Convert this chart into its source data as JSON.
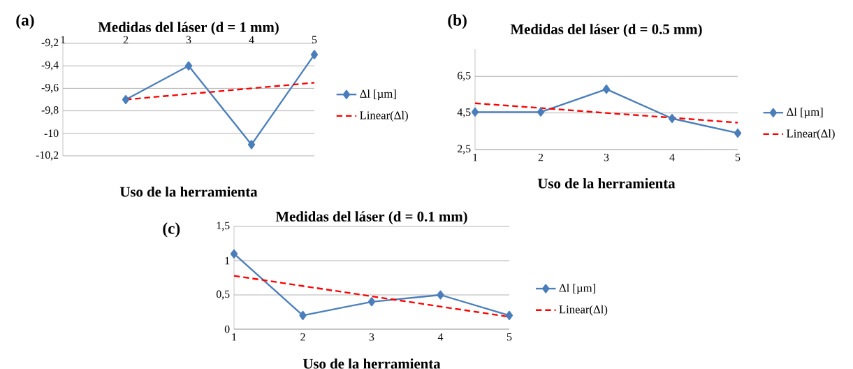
{
  "chart_data": [
    {
      "type": "line",
      "title": "Medidas del láser (d = 1 mm)",
      "xlabel": "Uso de la herramienta",
      "annotations": [
        "(a)"
      ],
      "categories": [
        "1",
        "2",
        "3",
        "4",
        "5"
      ],
      "series": [
        {
          "name": "Δl [µm]",
          "color": "#4a7ebb",
          "marker": "diamond",
          "line_style": "solid",
          "values": [
            null,
            -9.7,
            -9.4,
            -10.1,
            -9.3
          ]
        },
        {
          "name": "Linear(Δl)",
          "type": "line",
          "color": "#ff0000",
          "marker": "none",
          "line_style": "dashed",
          "values": [
            null,
            -9.7,
            -9.65,
            -9.6,
            -9.55
          ]
        }
      ],
      "ylim": [
        -10.2,
        -9.2
      ],
      "yticks": [
        {
          "value": -10.2,
          "label": "-10,2"
        },
        {
          "value": -10,
          "label": "-10"
        },
        {
          "value": -9.8,
          "label": "-9,8"
        },
        {
          "value": -9.6,
          "label": "-9,6"
        },
        {
          "value": -9.4,
          "label": "-9,4"
        },
        {
          "value": -9.2,
          "label": "-9,2"
        }
      ],
      "grid": "y",
      "legend": "right"
    },
    {
      "type": "line",
      "title": "Medidas del láser (d = 0.5 mm)",
      "xlabel": "Uso de la herramienta",
      "annotations": [
        "(b)"
      ],
      "categories": [
        "1",
        "2",
        "3",
        "4",
        "5"
      ],
      "series": [
        {
          "name": "Δl [µm]",
          "color": "#4a7ebb",
          "marker": "diamond",
          "line_style": "solid",
          "values": [
            4.55,
            4.55,
            5.8,
            4.2,
            3.4
          ]
        },
        {
          "name": "Linear(Δl)",
          "type": "line",
          "color": "#ff0000",
          "marker": "none",
          "line_style": "dashed",
          "values": [
            5.03,
            4.77,
            4.5,
            4.24,
            3.97
          ]
        }
      ],
      "ylim": [
        2.5,
        8
      ],
      "yticks": [
        {
          "value": 2.5,
          "label": "2,5"
        },
        {
          "value": 4.5,
          "label": "4,5"
        },
        {
          "value": 6.5,
          "label": "6,5"
        }
      ],
      "grid": "y",
      "legend": "right"
    },
    {
      "type": "line",
      "title": "Medidas del láser (d = 0.1 mm)",
      "xlabel": "Uso de la herramienta",
      "annotations": [
        "(c)"
      ],
      "categories": [
        "1",
        "2",
        "3",
        "4",
        "5"
      ],
      "series": [
        {
          "name": "Δl [µm]",
          "color": "#4a7ebb",
          "marker": "diamond",
          "line_style": "solid",
          "values": [
            1.1,
            0.2,
            0.4,
            0.5,
            0.2
          ]
        },
        {
          "name": "Linear(Δl)",
          "type": "line",
          "color": "#ff0000",
          "marker": "none",
          "line_style": "dashed",
          "values": [
            0.78,
            0.63,
            0.48,
            0.33,
            0.18
          ]
        }
      ],
      "ylim": [
        0,
        1.5
      ],
      "yticks": [
        0,
        {
          "value": 0.5,
          "label": "0,5"
        },
        1,
        {
          "value": 1.5,
          "label": "1,5"
        }
      ],
      "grid": "y",
      "legend": "right"
    }
  ]
}
